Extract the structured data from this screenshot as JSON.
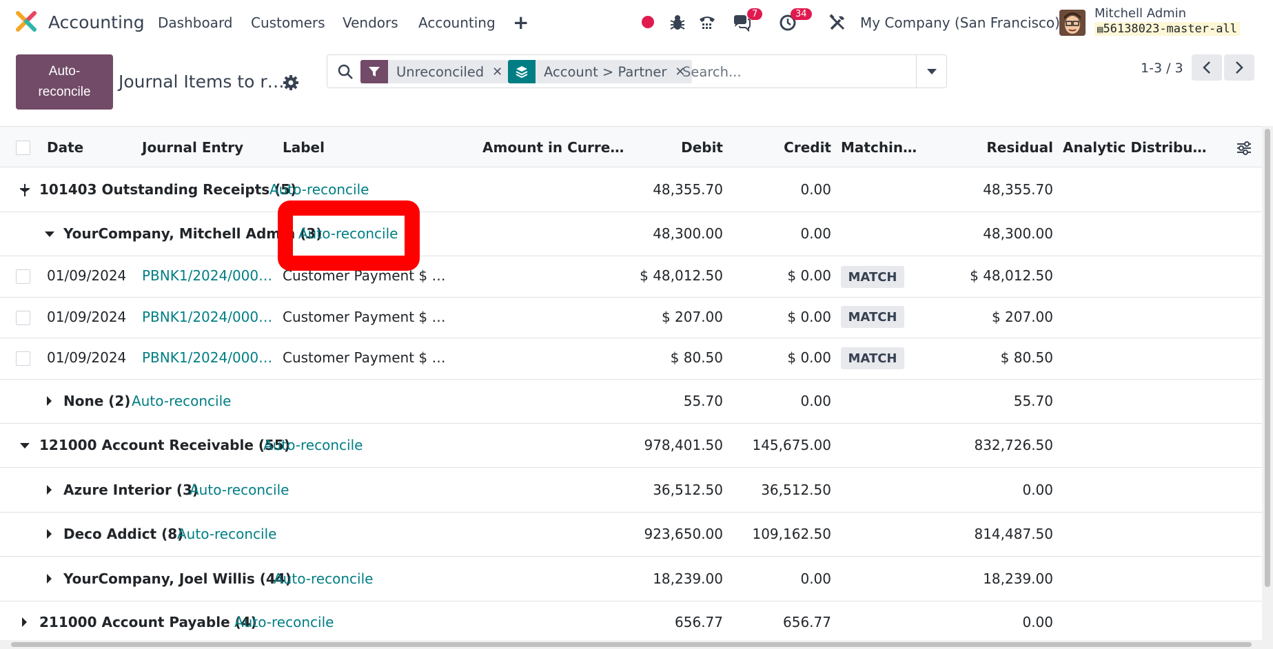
{
  "navbar": {
    "app_name": "Accounting",
    "menu": [
      "Dashboard",
      "Customers",
      "Vendors",
      "Accounting"
    ],
    "messages_count": "7",
    "activities_count": "34",
    "company": "My Company (San Francisco)",
    "user_name": "Mitchell Admin",
    "database": "56138023-master-all"
  },
  "control_panel": {
    "primary_button": "Auto-\nreconcile",
    "title": "Journal Items to r…",
    "facets": [
      {
        "icon": "filter-icon",
        "label": "Unreconciled"
      },
      {
        "icon": "group-by-icon",
        "label": "Account > Partner"
      }
    ],
    "search_placeholder": "Search...",
    "pager": "1-3 / 3"
  },
  "list": {
    "columns": [
      "Date",
      "Journal Entry",
      "Label",
      "Amount in Curre…",
      "Debit",
      "Credit",
      "Matchin…",
      "Residual",
      "Analytic Distribu…"
    ],
    "rows": [
      {
        "type": "group1",
        "label": "101403 Outstanding Receipts (5)",
        "action": "Auto-reconcile",
        "debit": "48,355.70",
        "credit": "0.00",
        "residual": "48,355.70",
        "expanded": true
      },
      {
        "type": "group2",
        "label": "YourCompany, Mitchell Admin (3)",
        "action": "Auto-reconcile",
        "debit": "48,300.00",
        "credit": "0.00",
        "residual": "48,300.00",
        "expanded": true
      },
      {
        "type": "record",
        "date": "01/09/2024",
        "entry": "PBNK1/2024/000…",
        "label": "Customer Payment $ …",
        "debit": "$ 48,012.50",
        "credit": "$ 0.00",
        "match": "MATCH",
        "residual": "$ 48,012.50"
      },
      {
        "type": "record",
        "date": "01/09/2024",
        "entry": "PBNK1/2024/000…",
        "label": "Customer Payment $ …",
        "debit": "$ 207.00",
        "credit": "$ 0.00",
        "match": "MATCH",
        "residual": "$ 207.00"
      },
      {
        "type": "record",
        "date": "01/09/2024",
        "entry": "PBNK1/2024/000…",
        "label": "Customer Payment $ …",
        "debit": "$ 80.50",
        "credit": "$ 0.00",
        "match": "MATCH",
        "residual": "$ 80.50"
      },
      {
        "type": "group2",
        "label": "None (2)",
        "action": "Auto-reconcile",
        "debit": "55.70",
        "credit": "0.00",
        "residual": "55.70",
        "expanded": false
      },
      {
        "type": "group1",
        "label": "121000 Account Receivable (55)",
        "action": "Auto-reconcile",
        "debit": "978,401.50",
        "credit": "145,675.00",
        "residual": "832,726.50",
        "expanded": true
      },
      {
        "type": "group2",
        "label": "Azure Interior (3)",
        "action": "Auto-reconcile",
        "debit": "36,512.50",
        "credit": "36,512.50",
        "residual": "0.00",
        "expanded": false
      },
      {
        "type": "group2",
        "label": "Deco Addict (8)",
        "action": "Auto-reconcile",
        "debit": "923,650.00",
        "credit": "109,162.50",
        "residual": "814,487.50",
        "expanded": false
      },
      {
        "type": "group2",
        "label": "YourCompany, Joel Willis (44)",
        "action": "Auto-reconcile",
        "debit": "18,239.00",
        "credit": "0.00",
        "residual": "18,239.00",
        "expanded": false
      },
      {
        "type": "group1",
        "label": "211000 Account Payable (4)",
        "action": "Auto-reconcile",
        "debit": "656.77",
        "credit": "656.77",
        "residual": "0.00",
        "expanded": false
      }
    ]
  },
  "colors": {
    "brand": "#714b67",
    "link": "#017e84",
    "badge": "#e01a4f",
    "highlight": "#ff0000"
  }
}
